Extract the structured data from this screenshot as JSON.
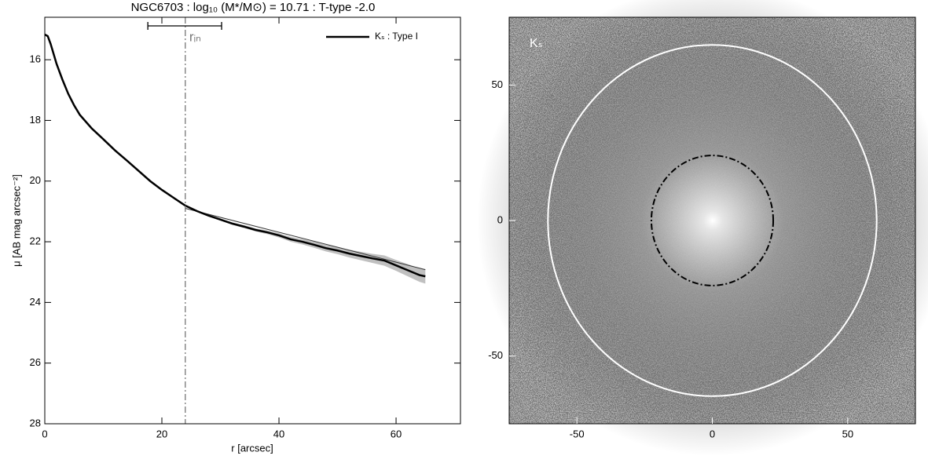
{
  "chart_data": [
    {
      "type": "line",
      "title": "NGC6703 : log₁₀ (M*/M⊙) = 10.71 : T-type -2.0",
      "x_label": "r [arcsec]",
      "y_label": "μ [AB mag arcsec⁻²]",
      "xlim": [
        0,
        71
      ],
      "ylim": [
        28,
        14.6
      ],
      "xticks": [
        0,
        20,
        40,
        60
      ],
      "yticks": [
        16,
        18,
        20,
        22,
        24,
        26,
        28
      ],
      "legend": "upper right",
      "series": [
        {
          "name": "Kₛ : Type I",
          "color": "#000000",
          "x": [
            0,
            0.5,
            1,
            2,
            3,
            4,
            5,
            6,
            8,
            10,
            12,
            14,
            16,
            18,
            20,
            22,
            24,
            26,
            28,
            30,
            32,
            34,
            36,
            38,
            40,
            42,
            44,
            46,
            48,
            50,
            52,
            54,
            56,
            58,
            60,
            62,
            64,
            65
          ],
          "values": [
            15.17,
            15.22,
            15.48,
            16.13,
            16.65,
            17.12,
            17.5,
            17.82,
            18.26,
            18.62,
            18.99,
            19.32,
            19.66,
            20.0,
            20.29,
            20.55,
            20.81,
            20.99,
            21.14,
            21.27,
            21.4,
            21.5,
            21.61,
            21.69,
            21.79,
            21.92,
            22.0,
            22.1,
            22.21,
            22.29,
            22.39,
            22.47,
            22.55,
            22.62,
            22.78,
            22.94,
            23.1,
            23.14
          ],
          "errors": [
            0,
            0,
            0,
            0,
            0,
            0,
            0,
            0,
            0,
            0,
            0,
            0,
            0,
            0,
            0.01,
            0.01,
            0.02,
            0.02,
            0.03,
            0.03,
            0.04,
            0.05,
            0.05,
            0.06,
            0.07,
            0.08,
            0.09,
            0.1,
            0.11,
            0.12,
            0.13,
            0.14,
            0.15,
            0.17,
            0.18,
            0.2,
            0.22,
            0.24
          ],
          "band_color": "#c0c0c0"
        }
      ],
      "fit": {
        "color": "#333333",
        "x": [
          24,
          65
        ],
        "values": [
          20.9,
          22.92
        ]
      },
      "break": {
        "value": 24,
        "label": "rᵢₙ",
        "range": [
          17.6,
          30.2
        ],
        "color": "#777777"
      }
    },
    {
      "type": "image",
      "label": "Kₛ",
      "xlim": [
        -75,
        75
      ],
      "ylim": [
        -75,
        75
      ],
      "xticks": [
        -50,
        0,
        50
      ],
      "yticks": [
        -50,
        0,
        50
      ],
      "ellipses": [
        {
          "color": "#ffffff",
          "style": "solid",
          "center": [
            0,
            0
          ],
          "radii": [
            60.7,
            64.8
          ]
        },
        {
          "color": "#000000",
          "style": "dashdot",
          "center": [
            0,
            0
          ],
          "radii": [
            22.5,
            24
          ]
        }
      ]
    }
  ]
}
